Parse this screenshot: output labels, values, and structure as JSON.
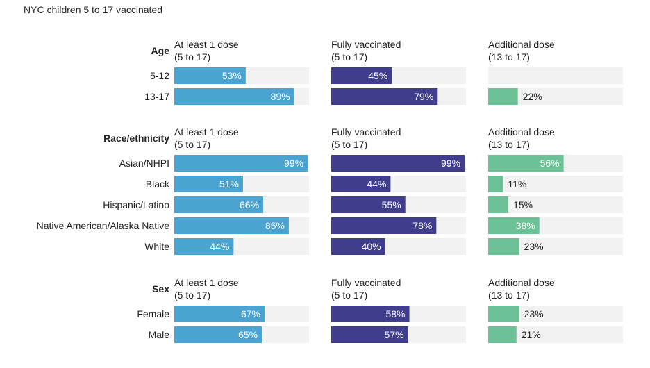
{
  "title": "NYC children 5 to 17 vaccinated",
  "colors": {
    "dose1": "#4aa3d0",
    "full": "#3f3d8c",
    "additional": "#6cc197",
    "track": "#f2f2f2"
  },
  "chart_data": {
    "type": "bar",
    "orientation": "horizontal",
    "xlim": [
      0,
      100
    ],
    "unit": "%",
    "columns": [
      {
        "key": "dose1",
        "line1": "At least 1 dose",
        "line2": "(5 to 17)"
      },
      {
        "key": "full",
        "line1": "Fully vaccinated",
        "line2": "(5 to 17)"
      },
      {
        "key": "additional",
        "line1": "Additional dose",
        "line2": "(13 to 17)"
      }
    ],
    "sections": [
      {
        "name": "Age",
        "rows": [
          {
            "label": "5-12",
            "values": [
              53,
              45,
              null
            ]
          },
          {
            "label": "13-17",
            "values": [
              89,
              79,
              22
            ]
          }
        ]
      },
      {
        "name": "Race/ethnicity",
        "rows": [
          {
            "label": "Asian/NHPI",
            "values": [
              99,
              99,
              56
            ]
          },
          {
            "label": "Black",
            "values": [
              51,
              44,
              11
            ]
          },
          {
            "label": "Hispanic/Latino",
            "values": [
              66,
              55,
              15
            ]
          },
          {
            "label": "Native American/Alaska Native",
            "values": [
              85,
              78,
              38
            ]
          },
          {
            "label": "White",
            "values": [
              44,
              40,
              23
            ]
          }
        ]
      },
      {
        "name": "Sex",
        "rows": [
          {
            "label": "Female",
            "values": [
              67,
              58,
              23
            ]
          },
          {
            "label": "Male",
            "values": [
              65,
              57,
              21
            ]
          }
        ]
      }
    ]
  }
}
